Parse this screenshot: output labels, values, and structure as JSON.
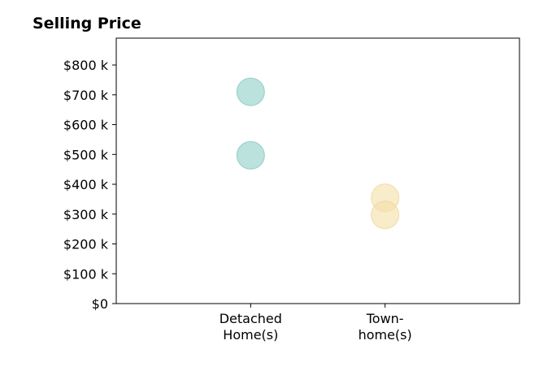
{
  "chart_data": {
    "type": "scatter",
    "title": "Selling Price",
    "xlabel": "",
    "ylabel": "",
    "categories": [
      [
        "Detached",
        "Home(s)"
      ],
      [
        "Town-",
        "home(s)"
      ]
    ],
    "y_ticks": [
      {
        "value": 0,
        "label": "$0"
      },
      {
        "value": 100,
        "label": "$100 k"
      },
      {
        "value": 200,
        "label": "$200 k"
      },
      {
        "value": 300,
        "label": "$300 k"
      },
      {
        "value": 400,
        "label": "$400 k"
      },
      {
        "value": 500,
        "label": "$500 k"
      },
      {
        "value": 600,
        "label": "$600 k"
      },
      {
        "value": 700,
        "label": "$700 k"
      },
      {
        "value": 800,
        "label": "$800 k"
      }
    ],
    "ylim": [
      0,
      890
    ],
    "xlim": [
      -1,
      2
    ],
    "grid": false,
    "series": [
      {
        "category_index": 0,
        "values": [
          710,
          497
        ],
        "color": "#8ecfc7",
        "edge_color": "#79c1b8"
      },
      {
        "category_index": 1,
        "values": [
          355,
          297
        ],
        "color": "#f3dfa7",
        "edge_color": "#ecd28f"
      }
    ]
  }
}
